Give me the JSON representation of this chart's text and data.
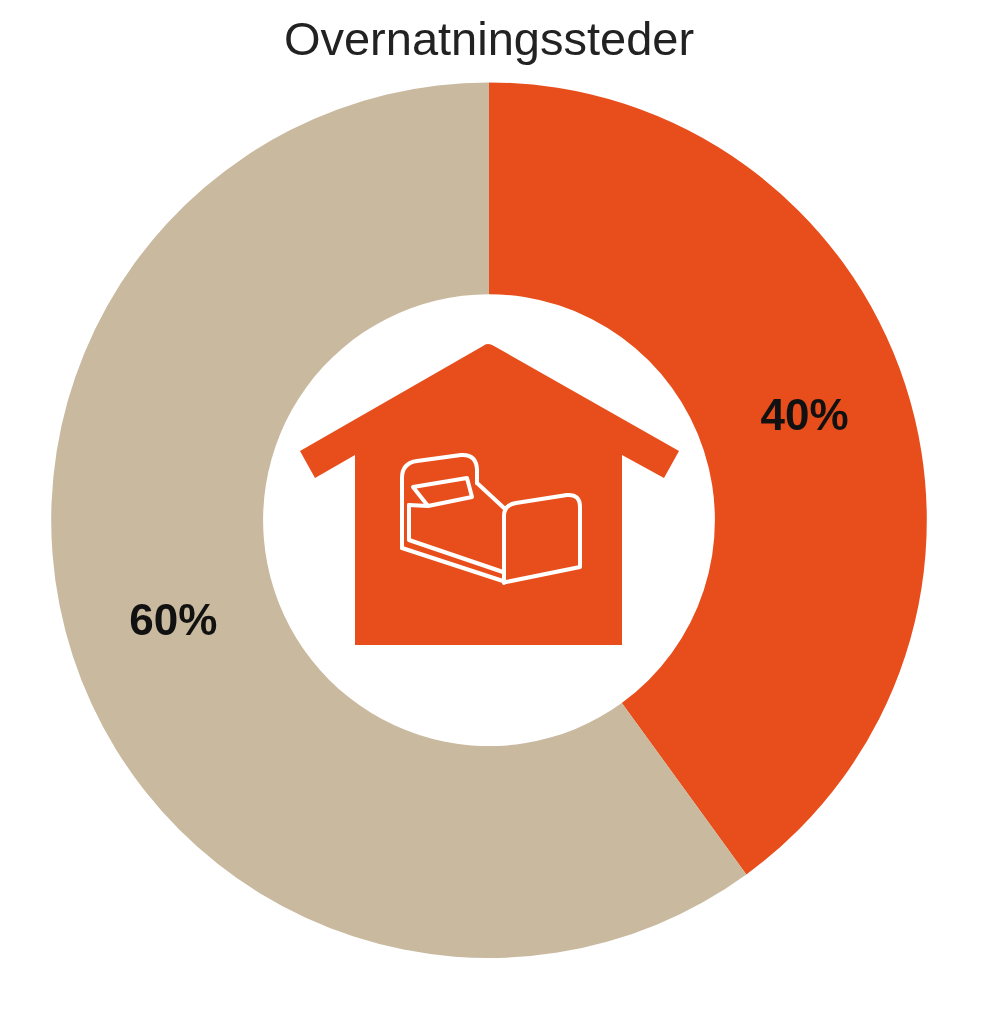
{
  "chart_data": {
    "type": "donut",
    "title": "Overnatningssteder",
    "categories": [
      null,
      null
    ],
    "values": [
      40,
      60
    ],
    "colors": [
      "#e84e1b",
      "#c9b99f"
    ],
    "value_labels": [
      "40%",
      "60%"
    ]
  }
}
